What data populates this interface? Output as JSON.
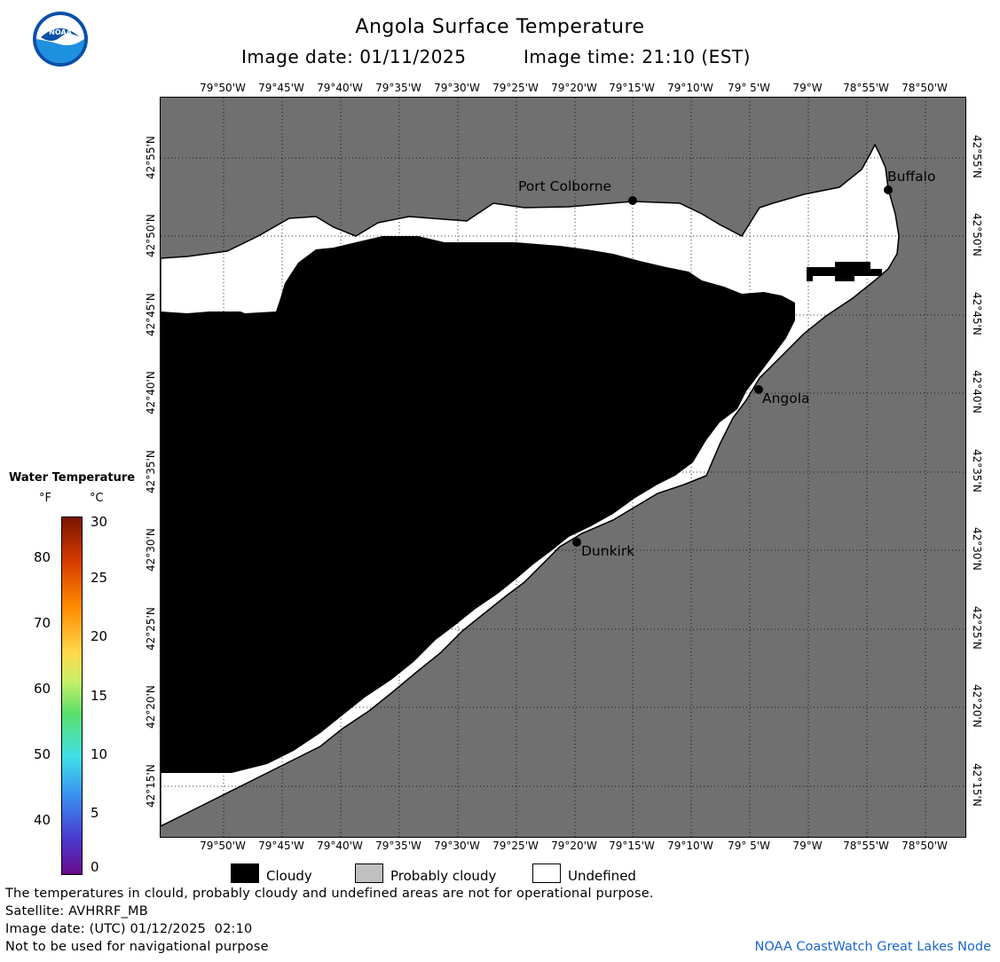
{
  "header": {
    "title": "Angola Surface Temperature",
    "image_date_label": "Image date: 01/11/2025",
    "image_time_label": "Image time: 21:10 (EST)"
  },
  "logo": {
    "text": "NOAA"
  },
  "map": {
    "longitude_ticks": [
      "79°50'W",
      "79°45'W",
      "79°40'W",
      "79°35'W",
      "79°30'W",
      "79°25'W",
      "79°20'W",
      "79°15'W",
      "79°10'W",
      "79° 5'W",
      "79°W",
      "78°55'W",
      "78°50'W"
    ],
    "latitude_ticks": [
      "42°55'N",
      "42°50'N",
      "42°45'N",
      "42°40'N",
      "42°35'N",
      "42°30'N",
      "42°25'N",
      "42°20'N",
      "42°15'N"
    ],
    "places": [
      {
        "name": "Port Colborne"
      },
      {
        "name": "Buffalo"
      },
      {
        "name": "Angola"
      },
      {
        "name": "Dunkirk"
      }
    ],
    "colors": {
      "land": "#707070",
      "cloudy": "#000000",
      "undefined": "#ffffff"
    }
  },
  "color_scale": {
    "title": "Water Temperature",
    "unit_f": "°F",
    "unit_c": "°C",
    "f_labels": [
      "80",
      "70",
      "60",
      "50",
      "40"
    ],
    "c_labels": [
      "30",
      "25",
      "20",
      "15",
      "10",
      "5",
      "0"
    ]
  },
  "legend": {
    "cloudy": "Cloudy",
    "probably_cloudy": "Probably cloudy",
    "undefined": "Undefined"
  },
  "footer": {
    "disclaimer": "The temperatures in clould, probably cloudy and undefined areas are not for operational purpose.",
    "satellite": "Satellite: AVHRRF_MB",
    "utc_date": "Image date: (UTC) 01/12/2025  02:10",
    "nav_note": "Not to be used for navigational purpose",
    "credit": "NOAA CoastWatch Great Lakes Node"
  }
}
